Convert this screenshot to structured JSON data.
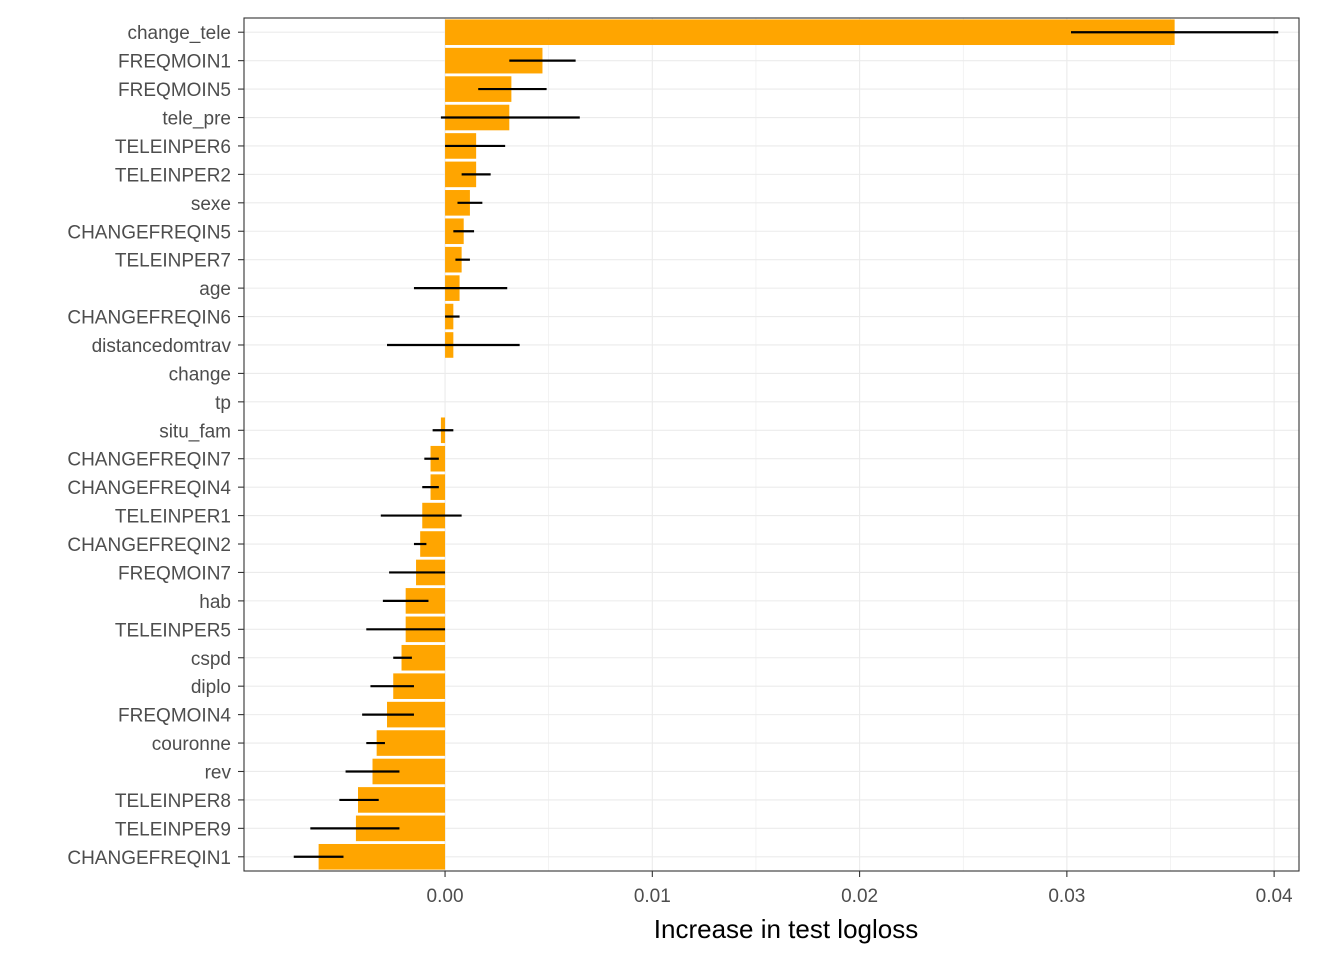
{
  "chart_data": {
    "type": "bar",
    "orientation": "horizontal",
    "title": "",
    "xlabel": "Increase in test logloss",
    "ylabel": "",
    "xlim": [
      -0.0097,
      0.0412
    ],
    "xticks": [
      0.0,
      0.01,
      0.02,
      0.03,
      0.04
    ],
    "xtick_labels": [
      "0.00",
      "0.01",
      "0.02",
      "0.03",
      "0.04"
    ],
    "grid": true,
    "legend": "none",
    "bar_color": "#FFA500",
    "errorbar_color": "#000000",
    "gridline_color": "#EBEBEB",
    "axis_color": "#333333",
    "tick_label_color": "#4D4D4D",
    "categories": [
      "change_tele",
      "FREQMOIN1",
      "FREQMOIN5",
      "tele_pre",
      "TELEINPER6",
      "TELEINPER2",
      "sexe",
      "CHANGEFREQIN5",
      "TELEINPER7",
      "age",
      "CHANGEFREQIN6",
      "distancedomtrav",
      "change",
      "tp",
      "situ_fam",
      "CHANGEFREQIN7",
      "CHANGEFREQIN4",
      "TELEINPER1",
      "CHANGEFREQIN2",
      "FREQMOIN7",
      "hab",
      "TELEINPER5",
      "cspd",
      "diplo",
      "FREQMOIN4",
      "couronne",
      "rev",
      "TELEINPER8",
      "TELEINPER9",
      "CHANGEFREQIN1"
    ],
    "values": [
      0.0352,
      0.0047,
      0.0032,
      0.0031,
      0.0015,
      0.0015,
      0.0012,
      0.0009,
      0.0008,
      0.0007,
      0.0004,
      0.0004,
      0.0,
      0.0,
      -0.0002,
      -0.0007,
      -0.0007,
      -0.0011,
      -0.0012,
      -0.0014,
      -0.0019,
      -0.0019,
      -0.0021,
      -0.0025,
      -0.0028,
      -0.0033,
      -0.0035,
      -0.0042,
      -0.0043,
      -0.0061
    ],
    "error_low": [
      0.0302,
      0.0031,
      0.0016,
      -0.0002,
      0.0,
      0.0008,
      0.0006,
      0.0004,
      0.0005,
      -0.0015,
      0.0,
      -0.0028,
      0.0,
      0.0,
      -0.0006,
      -0.001,
      -0.0011,
      -0.0031,
      -0.0015,
      -0.0027,
      -0.003,
      -0.0038,
      -0.0025,
      -0.0036,
      -0.004,
      -0.0038,
      -0.0048,
      -0.0051,
      -0.0065,
      -0.0073
    ],
    "error_high": [
      0.0402,
      0.0063,
      0.0049,
      0.0065,
      0.0029,
      0.0022,
      0.0018,
      0.0014,
      0.0012,
      0.003,
      0.0007,
      0.0036,
      0.0,
      0.0,
      0.0004,
      -0.0003,
      -0.0003,
      0.0008,
      -0.0009,
      0.0,
      -0.0008,
      0.0,
      -0.0016,
      -0.0015,
      -0.0015,
      -0.0029,
      -0.0022,
      -0.0032,
      -0.0022,
      -0.0049
    ]
  }
}
